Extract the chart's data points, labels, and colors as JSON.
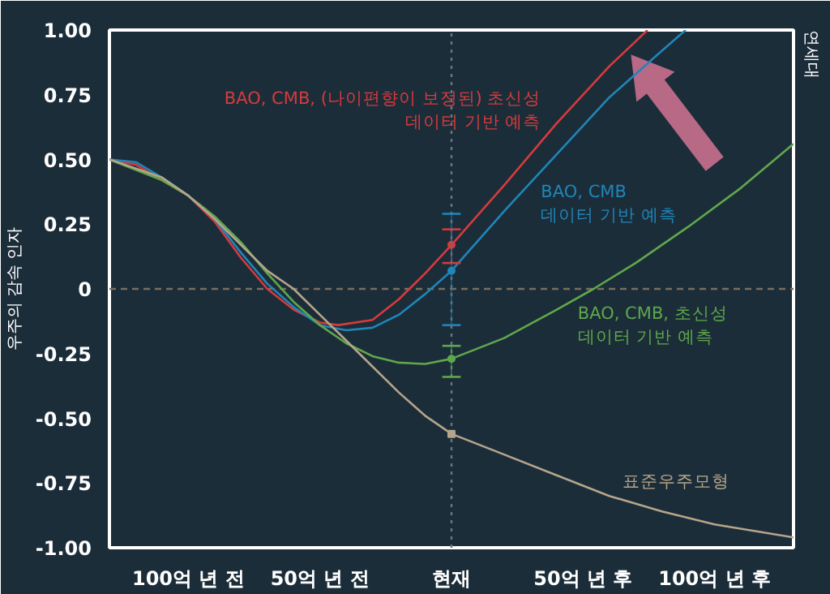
{
  "chart_data": {
    "type": "line",
    "ylabel": "우주의 감속 인자",
    "xlim": [
      -130,
      130
    ],
    "xticks": [
      {
        "value": -100,
        "label": "100억 년 전"
      },
      {
        "value": -50,
        "label": "50억 년 전"
      },
      {
        "value": 0,
        "label": "현재"
      },
      {
        "value": 50,
        "label": "50억 년 후"
      },
      {
        "value": 100,
        "label": "100억 년 후"
      }
    ],
    "ylim": [
      -1,
      1
    ],
    "yticks": [
      {
        "value": 1,
        "label": "1.00"
      },
      {
        "value": 0.75,
        "label": "0.75"
      },
      {
        "value": 0.5,
        "label": "0.50"
      },
      {
        "value": 0.25,
        "label": "0.25"
      },
      0,
      {
        "value": -0.25,
        "label": "-0.25"
      },
      {
        "value": -0.5,
        "label": "-0.50"
      },
      {
        "value": -0.75,
        "label": "-0.75"
      },
      {
        "value": -1,
        "label": "-1.00"
      }
    ],
    "grid": false,
    "series": [
      {
        "name": "BAO, CMB, (나이편향이 보정된) 초신성\n데이터 기반 예측",
        "color": "#d63b3b",
        "x": [
          -130,
          -120,
          -110,
          -100,
          -90,
          -80,
          -70,
          -60,
          -50,
          -43,
          -30,
          -20,
          -10,
          0,
          20,
          40,
          60,
          74.5
        ],
        "values": [
          0.5,
          0.48,
          0.42,
          0.36,
          0.26,
          0.12,
          0.0,
          -0.08,
          -0.13,
          -0.14,
          -0.12,
          -0.04,
          0.06,
          0.17,
          0.4,
          0.64,
          0.86,
          1.0
        ]
      },
      {
        "name": "BAO, CMB\n데이터 기반 예측",
        "color": "#1f86b8",
        "x": [
          -130,
          -120,
          -110,
          -100,
          -90,
          -80,
          -70,
          -60,
          -50,
          -40,
          -30,
          -20,
          -10,
          0,
          20,
          40,
          60,
          80,
          89
        ],
        "values": [
          0.5,
          0.49,
          0.43,
          0.36,
          0.27,
          0.14,
          0.02,
          -0.07,
          -0.14,
          -0.16,
          -0.15,
          -0.1,
          -0.02,
          0.07,
          0.3,
          0.52,
          0.74,
          0.92,
          1.0
        ]
      },
      {
        "name": "BAO, CMB, 초신성\n데이터 기반 예측",
        "color": "#5fa84a",
        "x": [
          -130,
          -110,
          -100,
          -90,
          -80,
          -70,
          -60,
          -50,
          -40,
          -30,
          -20,
          -10,
          0,
          20,
          40,
          54,
          70,
          90,
          110,
          130
        ],
        "values": [
          0.5,
          0.42,
          0.36,
          0.28,
          0.18,
          0.06,
          -0.05,
          -0.14,
          -0.21,
          -0.26,
          -0.285,
          -0.29,
          -0.27,
          -0.19,
          -0.08,
          0.0,
          0.1,
          0.24,
          0.39,
          0.56
        ]
      },
      {
        "name": "표준우주모형",
        "color": "#b5a58a",
        "x": [
          -130,
          -110,
          -100,
          -90,
          -80,
          -70,
          -60,
          -50,
          -40,
          -30,
          -20,
          -10,
          0,
          20,
          40,
          60,
          80,
          100,
          130
        ],
        "values": [
          0.5,
          0.43,
          0.36,
          0.27,
          0.17,
          0.07,
          0.0,
          -0.1,
          -0.2,
          -0.3,
          -0.4,
          -0.49,
          -0.56,
          -0.64,
          -0.72,
          -0.8,
          -0.86,
          -0.91,
          -0.96
        ]
      },
      {
        "type": "scatter",
        "marker": "circle",
        "color": "#d63b3b",
        "x": [
          0
        ],
        "values": [
          0.17
        ],
        "errors": [
          [
            0.1,
            0.23
          ]
        ]
      },
      {
        "type": "scatter",
        "marker": "circle",
        "color": "#1f86b8",
        "x": [
          0
        ],
        "values": [
          0.07
        ],
        "errors": [
          [
            -0.14,
            0.29
          ]
        ]
      },
      {
        "type": "scatter",
        "marker": "circle",
        "color": "#5fa84a",
        "x": [
          0
        ],
        "values": [
          -0.27
        ],
        "errors": [
          [
            -0.34,
            -0.22
          ]
        ]
      },
      {
        "type": "scatter",
        "marker": "square",
        "color": "#b5a58a",
        "x": [
          0
        ],
        "values": [
          -0.56
        ]
      }
    ],
    "ref_lines": [
      {
        "axis": "y",
        "value": 0,
        "line_style": "dashed",
        "color": "#7a6e60"
      },
      {
        "axis": "x",
        "value": 0,
        "line_style": "dotted",
        "color": "#6a7580"
      }
    ],
    "annotations": [
      "연세대"
    ]
  }
}
